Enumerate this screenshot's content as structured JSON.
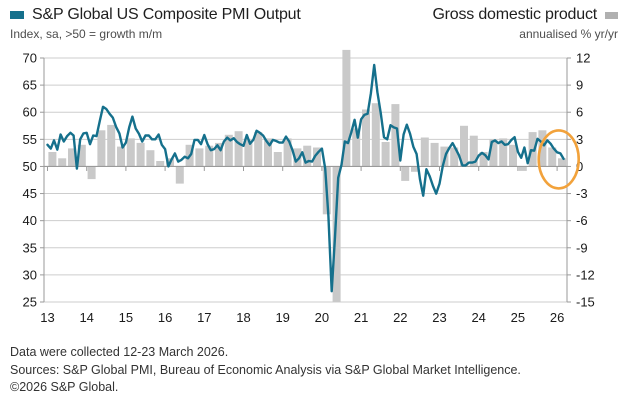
{
  "header": {
    "left_legend": {
      "label": "S&P Global US Composite PMI Output",
      "sublabel": "Index, sa, >50 = growth m/m",
      "color": "#15708C"
    },
    "right_legend": {
      "label": "Gross domestic product",
      "sublabel": "annualised % yr/yr",
      "color": "#B0B0B0"
    }
  },
  "chart_data": {
    "type": "combo",
    "title": "S&P Global US Composite PMI Output vs Gross domestic product",
    "x_axis": {
      "start_year": 2013,
      "end_year_fraction": 2026.3,
      "tick_labels": [
        "13",
        "14",
        "15",
        "16",
        "17",
        "18",
        "19",
        "20",
        "21",
        "22",
        "23",
        "24",
        "25",
        "26"
      ]
    },
    "left_axis": {
      "title": "Index, sa, >50 = growth m/m",
      "min": 25,
      "max": 70,
      "ticks": [
        70,
        65,
        60,
        55,
        50,
        45,
        40,
        35,
        30,
        25
      ],
      "tick_labels": [
        "70",
        "65",
        "60",
        "55",
        "50",
        "45",
        "40",
        "35",
        "30",
        "25"
      ]
    },
    "right_axis": {
      "title": "annualised % yr/yr",
      "min": -15,
      "max": 12,
      "ticks": [
        12,
        9,
        6,
        3,
        0,
        -3,
        -6,
        -9,
        -12,
        -15
      ],
      "tick_labels": [
        "12",
        "9",
        "6",
        "3",
        "0",
        "-3",
        "-6",
        "-9",
        "-12",
        "-15"
      ]
    },
    "series": [
      {
        "name": "S&P Global US Composite PMI Output",
        "type": "line",
        "axis": "left",
        "frequency": "monthly",
        "start": "2013-01",
        "values": [
          54.0,
          53.3,
          54.8,
          53.1,
          55.9,
          54.6,
          55.6,
          56.2,
          55.7,
          49.6,
          55.0,
          56.1,
          56.2,
          54.1,
          55.7,
          55.6,
          58.4,
          61.0,
          60.6,
          59.7,
          59.0,
          57.3,
          56.1,
          53.5,
          54.4,
          57.2,
          59.2,
          57.0,
          56.0,
          54.6,
          55.7,
          55.7,
          55.0,
          55.0,
          55.9,
          54.0,
          53.2,
          50.0,
          51.3,
          52.4,
          50.9,
          51.2,
          51.8,
          51.5,
          52.3,
          54.9,
          54.9,
          54.1,
          55.8,
          54.1,
          53.0,
          53.2,
          53.9,
          53.0,
          54.6,
          55.3,
          54.8,
          55.2,
          54.5,
          54.1,
          53.8,
          55.8,
          54.2,
          54.9,
          56.6,
          56.2,
          55.7,
          54.7,
          53.9,
          54.9,
          54.7,
          54.4,
          54.4,
          55.5,
          54.6,
          53.0,
          50.9,
          51.5,
          52.6,
          50.7,
          51.0,
          50.9,
          52.0,
          52.7,
          53.3,
          49.6,
          40.9,
          27.0,
          37.0,
          47.9,
          50.3,
          54.6,
          54.3,
          56.3,
          58.6,
          55.3,
          58.7,
          59.5,
          59.7,
          63.5,
          68.7,
          63.7,
          59.9,
          55.4,
          55.0,
          57.6,
          57.2,
          57.0,
          51.1,
          55.9,
          57.7,
          56.0,
          53.6,
          52.3,
          47.7,
          44.6,
          49.5,
          48.2,
          46.4,
          45.0,
          46.8,
          50.1,
          52.3,
          53.4,
          54.3,
          53.2,
          52.0,
          50.2,
          50.2,
          50.7,
          50.7,
          50.9,
          52.0,
          52.5,
          52.1,
          51.3,
          54.5,
          54.8,
          54.3,
          54.6,
          54.0,
          54.1,
          54.9,
          55.4,
          52.7,
          51.6,
          53.5,
          50.6,
          53.0,
          52.9,
          55.1,
          54.6,
          53.9,
          54.8,
          54.2,
          53.3,
          52.6,
          52.4,
          51.4
        ]
      },
      {
        "name": "Gross domestic product",
        "type": "bar",
        "axis": "right",
        "frequency": "quarterly",
        "start": "2013-Q1",
        "values": [
          1.6,
          0.9,
          2.0,
          2.4,
          -1.4,
          4.0,
          4.6,
          2.2,
          3.1,
          2.6,
          1.8,
          0.6,
          0.9,
          -1.9,
          2.4,
          2.0,
          2.3,
          2.6,
          3.5,
          3.9,
          2.9,
          3.8,
          3.1,
          1.6,
          3.1,
          2.0,
          2.3,
          2.1,
          -5.3,
          -31.2,
          33.4,
          4.2,
          6.3,
          7.0,
          2.7,
          6.9,
          -1.6,
          -0.6,
          3.2,
          2.6,
          2.2,
          2.1,
          4.5,
          3.4,
          1.6,
          3.0,
          3.1,
          2.4,
          -0.5,
          3.8,
          4.0,
          2.1,
          0.9
        ]
      }
    ],
    "annotation": {
      "type": "ellipse-highlight",
      "color": "#F2A23B",
      "x_year": 2026.04,
      "y_center_left": 51.3,
      "meaning": "highlights latest PMI decline around early 2026"
    },
    "grid": true,
    "legend_position": "top"
  },
  "footer": {
    "line1": "Data were collected 12-23 March 2026.",
    "line2": "Sources: S&P Global PMI, Bureau of Economic Analysis via S&P Global Market Intelligence.",
    "line3": "©2026 S&P Global."
  },
  "colors": {
    "line": "#15708C",
    "bar": "#C9C9C9",
    "grid": "#CDCDCD",
    "axis": "#9A9A9A",
    "zero_line": "#9A9A9A",
    "highlight": "#F2A23B",
    "text": "#1A1A1A",
    "subtext": "#4D4D4D",
    "legend_gray": "#B0B0B0"
  }
}
